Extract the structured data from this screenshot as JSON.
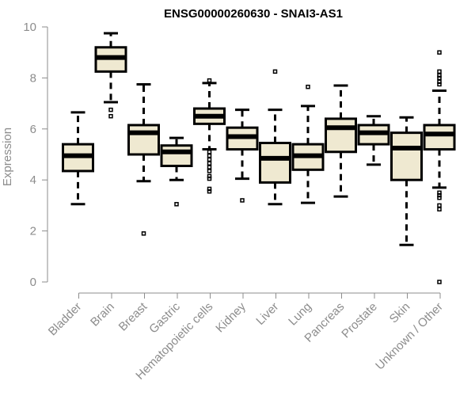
{
  "chart_data": {
    "type": "boxplot",
    "title": "ENSG00000260630 - SNAI3-AS1",
    "xlabel": "",
    "ylabel": "Expression",
    "ylim": [
      0,
      10
    ],
    "yticks": [
      "0",
      "2",
      "4",
      "6",
      "8",
      "10"
    ],
    "ytick_values": [
      0,
      2,
      4,
      6,
      8,
      10
    ],
    "grid": false,
    "box_fill": "#efe9d1",
    "categories": [
      "Bladder",
      "Brain",
      "Breast",
      "Gastric",
      "Hematopoietic cells",
      "Kidney",
      "Liver",
      "Lung",
      "Pancreas",
      "Prostate",
      "Skin",
      "Unknown / Other"
    ],
    "series": [
      {
        "name": "Bladder",
        "whisker_low": 3.05,
        "q1": 4.35,
        "median": 4.95,
        "q3": 5.4,
        "whisker_high": 6.65,
        "outliers": []
      },
      {
        "name": "Brain",
        "whisker_low": 7.05,
        "q1": 8.25,
        "median": 8.8,
        "q3": 9.2,
        "whisker_high": 9.75,
        "outliers": [
          6.75,
          6.5
        ]
      },
      {
        "name": "Breast",
        "whisker_low": 3.95,
        "q1": 5.0,
        "median": 5.85,
        "q3": 6.15,
        "whisker_high": 7.75,
        "outliers": [
          1.9
        ]
      },
      {
        "name": "Gastric",
        "whisker_low": 4.0,
        "q1": 4.55,
        "median": 5.1,
        "q3": 5.35,
        "whisker_high": 5.65,
        "outliers": [
          3.05
        ]
      },
      {
        "name": "Hematopoietic cells",
        "whisker_low": 5.2,
        "q1": 6.2,
        "median": 6.5,
        "q3": 6.8,
        "whisker_high": 7.8,
        "outliers": [
          7.9,
          5.1,
          4.95,
          4.8,
          4.65,
          4.5,
          4.35,
          4.15,
          4.05,
          3.65,
          3.55
        ]
      },
      {
        "name": "Kidney",
        "whisker_low": 4.05,
        "q1": 5.2,
        "median": 5.7,
        "q3": 6.05,
        "whisker_high": 6.75,
        "outliers": [
          3.2
        ]
      },
      {
        "name": "Liver",
        "whisker_low": 3.05,
        "q1": 3.9,
        "median": 4.85,
        "q3": 5.45,
        "whisker_high": 6.75,
        "outliers": [
          8.25
        ]
      },
      {
        "name": "Lung",
        "whisker_low": 3.1,
        "q1": 4.4,
        "median": 4.95,
        "q3": 5.4,
        "whisker_high": 6.9,
        "outliers": [
          7.65
        ]
      },
      {
        "name": "Pancreas",
        "whisker_low": 3.35,
        "q1": 5.1,
        "median": 6.05,
        "q3": 6.4,
        "whisker_high": 7.7,
        "outliers": []
      },
      {
        "name": "Prostate",
        "whisker_low": 4.6,
        "q1": 5.4,
        "median": 5.85,
        "q3": 6.15,
        "whisker_high": 6.5,
        "outliers": []
      },
      {
        "name": "Skin",
        "whisker_low": 1.45,
        "q1": 4.0,
        "median": 5.25,
        "q3": 5.85,
        "whisker_high": 6.45,
        "outliers": []
      },
      {
        "name": "Unknown / Other",
        "whisker_low": 3.7,
        "q1": 5.2,
        "median": 5.8,
        "q3": 6.15,
        "whisker_high": 7.5,
        "outliers": [
          9.0,
          8.25,
          8.1,
          8.0,
          7.85,
          7.75,
          3.5,
          3.4,
          3.3,
          3.0,
          2.85,
          0.0
        ]
      }
    ]
  }
}
